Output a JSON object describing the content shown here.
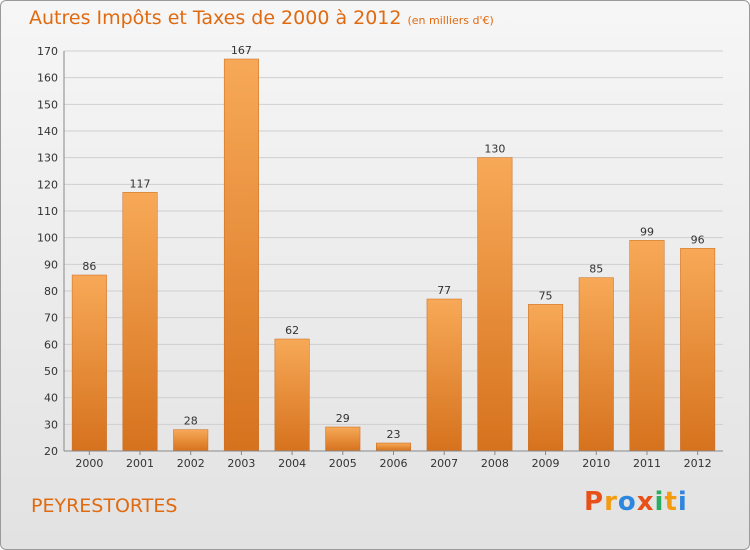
{
  "chart_data": {
    "type": "bar",
    "title": "Autres Impôts et Taxes de 2000 à 2012",
    "unit_note": "(en milliers d'€)",
    "categories": [
      "2000",
      "2001",
      "2002",
      "2003",
      "2004",
      "2005",
      "2006",
      "2007",
      "2008",
      "2009",
      "2010",
      "2011",
      "2012"
    ],
    "values": [
      86,
      117,
      28,
      167,
      62,
      29,
      23,
      77,
      130,
      75,
      85,
      99,
      96
    ],
    "ylim": [
      20,
      170
    ],
    "yticks": [
      20,
      30,
      40,
      50,
      60,
      70,
      80,
      90,
      100,
      110,
      120,
      130,
      140,
      150,
      160,
      170
    ],
    "grid": true,
    "bar_color": "#e8862e"
  },
  "commune": "PEYRESTORTES",
  "logo": {
    "letters": [
      "P",
      "r",
      "o",
      "x",
      "i",
      "t",
      "i"
    ],
    "colors": [
      "#e8501a",
      "#f39c12",
      "#2e86de",
      "#e8501a",
      "#27ae60",
      "#f39c12",
      "#2e86de"
    ]
  }
}
